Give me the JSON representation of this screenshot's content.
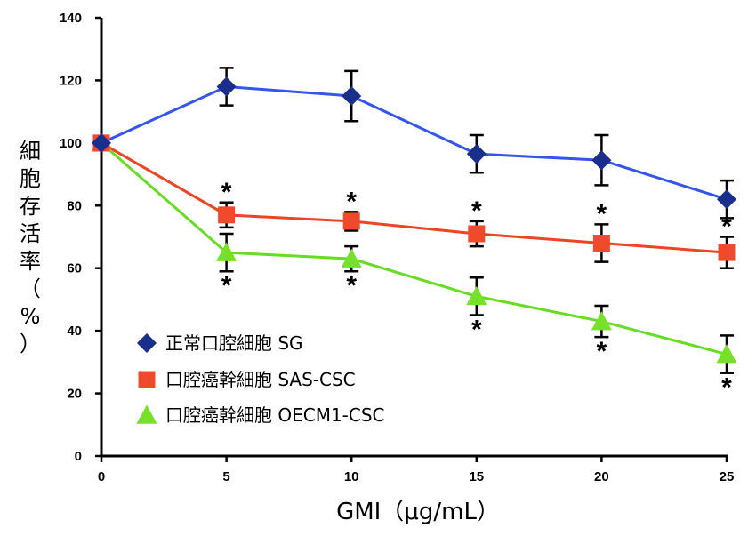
{
  "chart_data": {
    "type": "line",
    "x": [
      0,
      5,
      10,
      15,
      20,
      25
    ],
    "xlabel": "GMI（μg/mL）",
    "ylabel": "細胞存活率（%）",
    "ylim": [
      0,
      140
    ],
    "xlim": [
      0,
      25
    ],
    "x_ticks": [
      "0",
      "5",
      "10",
      "15",
      "20",
      "25"
    ],
    "y_ticks": [
      "0",
      "20",
      "40",
      "60",
      "80",
      "100",
      "120",
      "140"
    ],
    "legend_position": "bottom-left",
    "significance_mark": "*",
    "series": [
      {
        "name": "正常口腔細胞 SG",
        "marker": "diamond",
        "line_color": "#3355ee",
        "marker_color": "#1a2e8c",
        "values": [
          100,
          118,
          115,
          96.5,
          94.5,
          82
        ],
        "error": [
          0,
          6,
          8,
          6,
          8,
          6
        ],
        "significant": [
          false,
          false,
          false,
          false,
          false,
          false
        ]
      },
      {
        "name": "口腔癌幹細胞 SAS-CSC",
        "marker": "square",
        "line_color": "#ee4422",
        "marker_color": "#f04a2c",
        "values": [
          100,
          77,
          75,
          71,
          68,
          65
        ],
        "error": [
          0,
          4,
          3,
          4,
          6,
          5
        ],
        "significant": [
          false,
          true,
          true,
          true,
          true,
          true
        ]
      },
      {
        "name": "口腔癌幹細胞 OECM1-CSC",
        "marker": "triangle",
        "line_color": "#66dd22",
        "marker_color": "#77e028",
        "values": [
          100,
          65,
          63,
          51,
          43,
          32.5
        ],
        "error": [
          0,
          6,
          4,
          6,
          5,
          6
        ],
        "significant": [
          false,
          true,
          true,
          true,
          true,
          true
        ]
      }
    ]
  }
}
